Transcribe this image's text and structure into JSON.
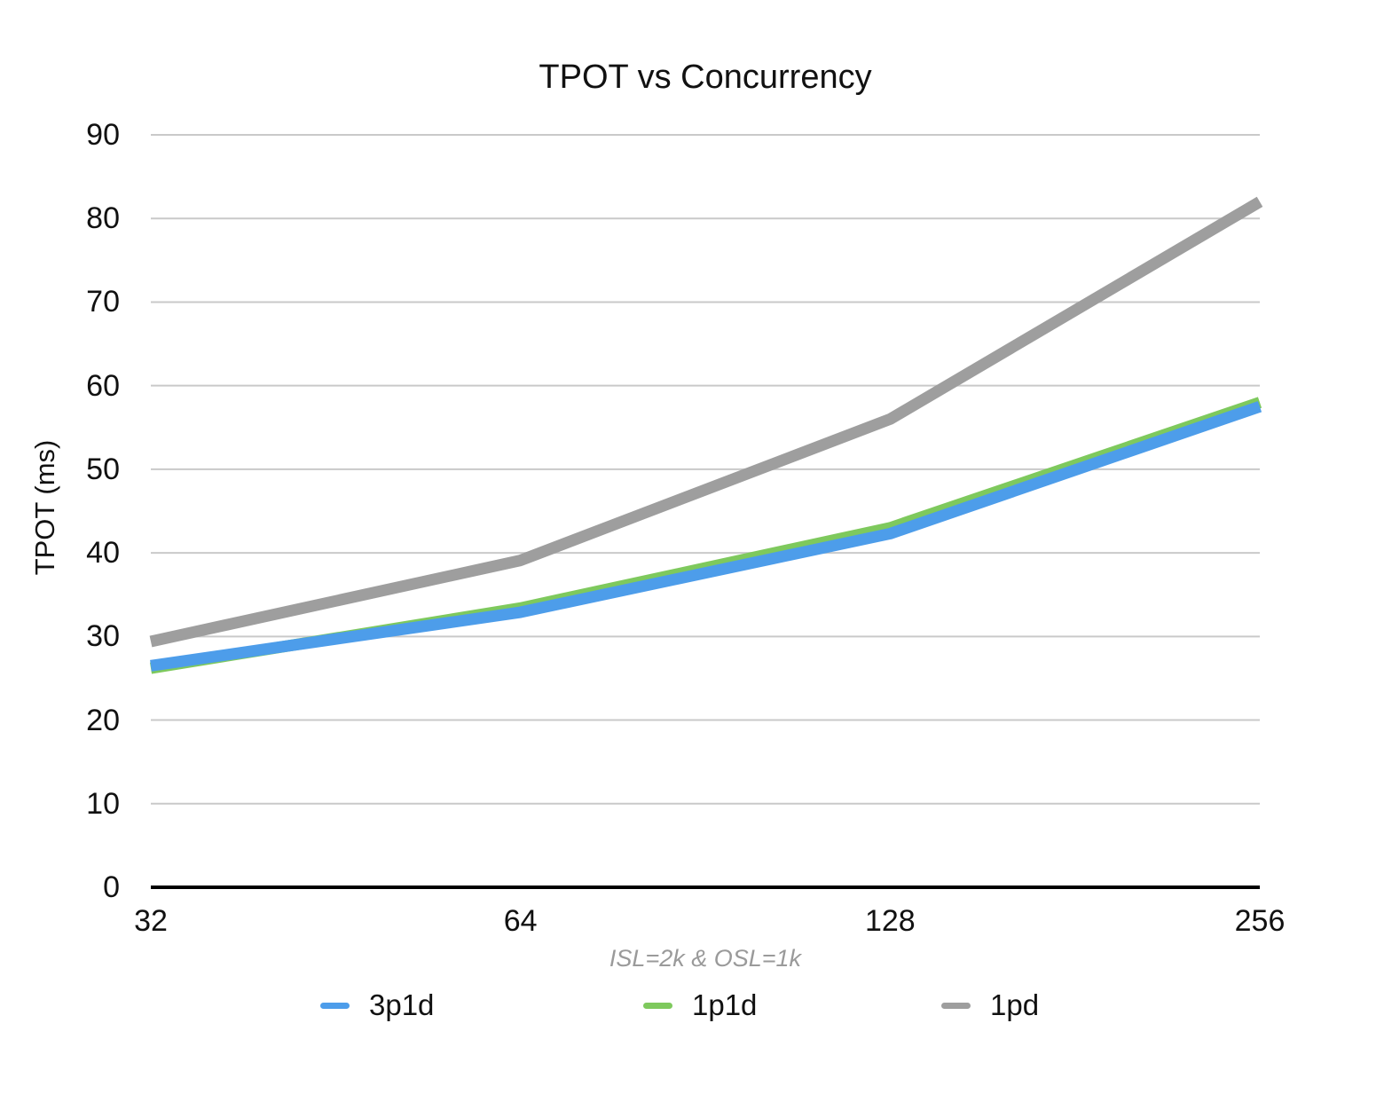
{
  "chart_data": {
    "type": "line",
    "title": "TPOT vs Concurrency",
    "ylabel": "TPOT (ms)",
    "xlabel": "ISL=2k & OSL=1k",
    "categories": [
      "32",
      "64",
      "128",
      "256"
    ],
    "series": [
      {
        "name": "3p1d",
        "color": "#4D9DEA",
        "values": [
          26.5,
          32.9,
          42.3,
          57.5
        ]
      },
      {
        "name": "1p1d",
        "color": "#7EC95D",
        "values": [
          26.2,
          33.4,
          43.0,
          58.0
        ]
      },
      {
        "name": "1pd",
        "color": "#9E9E9E",
        "values": [
          29.4,
          39.1,
          56.0,
          82.0
        ]
      }
    ],
    "ylim": [
      0,
      90
    ],
    "ytick_step": 10,
    "grid": true,
    "legend_position": "bottom"
  },
  "colors": {
    "gridline": "#c9c9c9",
    "axis_line": "#000000",
    "note_text": "#9a9a9a",
    "tick_text": "#111111"
  }
}
